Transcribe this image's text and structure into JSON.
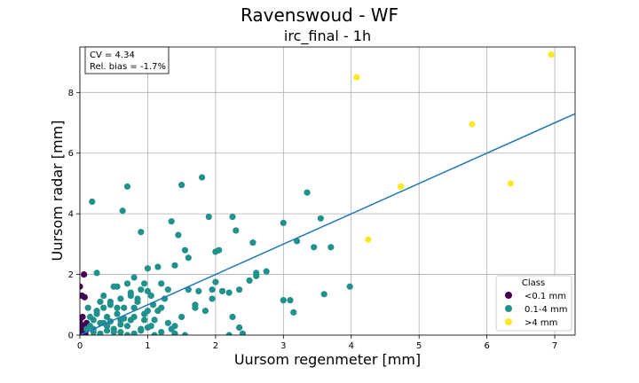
{
  "chart_data": {
    "type": "scatter",
    "title": "Ravenswoud - WF",
    "subtitle": "irc_final - 1h",
    "xlabel": "Uursom regenmeter [mm]",
    "ylabel": "Uursom radar [mm]",
    "xlim": [
      0,
      7.3
    ],
    "ylim": [
      0,
      9.5
    ],
    "xticks": [
      0,
      1,
      2,
      3,
      4,
      5,
      6,
      7
    ],
    "yticks": [
      0,
      2,
      4,
      6,
      8
    ],
    "grid": true,
    "annotation": {
      "line1": "CV = 4.34",
      "line2": "Rel. bias = -1.7%",
      "position": "top-left"
    },
    "legend": {
      "title": "Class",
      "position": "lower-right"
    },
    "fit_line": {
      "color": "#1f77b4",
      "slope": 1.0,
      "intercept": 0.0
    },
    "series": [
      {
        "name": "<0.1 mm",
        "color": "#440154",
        "x": [
          0.0,
          0.0,
          0.0,
          0.0,
          0.0,
          0.0,
          0.0,
          0.0,
          0.02,
          0.02,
          0.03,
          0.04,
          0.05,
          0.05,
          0.06,
          0.07,
          0.08,
          0.1
        ],
        "y": [
          0.0,
          0.05,
          0.1,
          0.2,
          0.3,
          0.4,
          0.5,
          1.6,
          0.0,
          0.2,
          1.3,
          0.6,
          0.1,
          0.3,
          2.0,
          1.25,
          0.05,
          0.4
        ]
      },
      {
        "name": "0.1-4 mm",
        "color": "#21918c",
        "x": [
          0.18,
          0.7,
          0.63,
          0.9,
          1.5,
          1.8,
          2.25,
          2.0,
          1.35,
          1.45,
          1.55,
          1.6,
          1.9,
          2.05,
          2.3,
          2.55,
          2.6,
          2.75,
          3.0,
          3.2,
          3.35,
          3.45,
          3.55,
          3.7,
          3.0,
          3.1,
          3.15,
          3.6,
          3.98,
          2.5,
          2.6,
          2.35,
          2.2,
          2.25,
          2.35,
          1.95,
          1.85,
          1.95,
          2.0,
          2.1,
          1.6,
          1.7,
          1.75,
          1.4,
          1.3,
          1.2,
          1.15,
          1.0,
          1.05,
          1.08,
          0.95,
          0.9,
          0.85,
          0.8,
          0.75,
          0.7,
          0.6,
          0.55,
          0.5,
          0.45,
          0.4,
          0.35,
          0.3,
          0.25,
          0.2,
          0.15,
          0.12,
          0.1,
          0.2,
          0.3,
          0.4,
          0.5,
          0.6,
          0.7,
          0.8,
          0.9,
          1.0,
          1.1,
          1.2,
          1.3,
          1.4,
          1.5,
          0.15,
          0.25,
          0.35,
          0.45,
          0.55,
          0.65,
          0.75,
          0.85,
          0.95,
          1.05,
          1.15,
          1.25,
          1.35,
          0.3,
          0.5,
          0.7,
          0.9,
          1.1,
          0.2,
          0.4,
          0.6,
          0.8,
          1.0,
          1.2,
          0.35,
          0.55,
          0.75,
          0.95,
          1.4,
          1.55,
          1.7,
          2.2,
          2.4,
          0.6,
          0.8,
          1.0,
          0.25,
          0.45,
          0.65
        ],
        "y": [
          4.4,
          4.9,
          4.1,
          3.4,
          4.95,
          5.2,
          3.9,
          2.75,
          3.75,
          3.3,
          2.8,
          2.55,
          3.9,
          2.8,
          3.45,
          3.05,
          2.05,
          2.1,
          3.7,
          3.1,
          4.7,
          2.9,
          3.85,
          2.9,
          1.15,
          1.15,
          0.75,
          1.35,
          1.6,
          1.8,
          1.95,
          1.5,
          1.4,
          0.6,
          0.25,
          1.5,
          0.8,
          1.2,
          1.75,
          1.45,
          1.5,
          1.0,
          1.45,
          2.3,
          1.5,
          1.7,
          2.25,
          2.2,
          1.3,
          1.0,
          1.7,
          1.5,
          1.2,
          1.9,
          1.4,
          1.7,
          1.2,
          0.9,
          1.6,
          1.0,
          0.6,
          0.9,
          1.1,
          0.7,
          0.5,
          0.3,
          0.9,
          0.2,
          0.1,
          0.4,
          0.3,
          0.2,
          0.5,
          0.3,
          0.6,
          0.2,
          0.8,
          0.5,
          0.9,
          0.4,
          0.3,
          0.6,
          0.6,
          0.8,
          0.4,
          1.1,
          0.7,
          0.9,
          0.5,
          1.1,
          0.7,
          0.3,
          0.8,
          1.2,
          0.2,
          0.05,
          0.1,
          0.0,
          0.15,
          0.0,
          0.2,
          0.15,
          0.1,
          0.05,
          0.25,
          0.1,
          1.3,
          1.6,
          1.3,
          0.5,
          0.05,
          0.0,
          0.9,
          0.0,
          0.05,
          0.35,
          0.9,
          1.45,
          2.05,
          0.45,
          0.55
        ]
      },
      {
        "name": ">4 mm",
        "color": "#fde725",
        "x": [
          4.08,
          6.95,
          5.78,
          4.73,
          6.35,
          4.25
        ],
        "y": [
          8.5,
          9.25,
          6.95,
          4.9,
          5.0,
          3.15
        ]
      }
    ]
  }
}
